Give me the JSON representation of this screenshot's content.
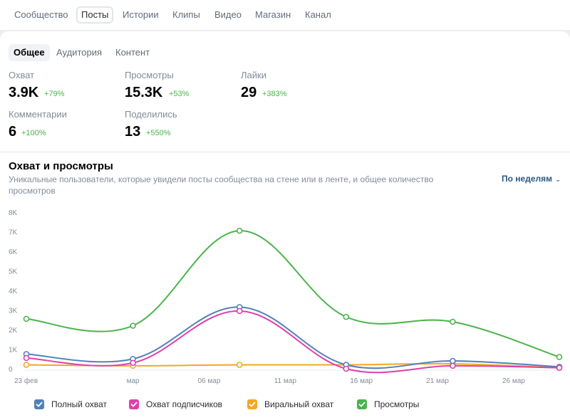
{
  "nav": {
    "tabs": [
      "Сообщество",
      "Посты",
      "Истории",
      "Клипы",
      "Видео",
      "Магазин",
      "Канал"
    ],
    "active": "Посты"
  },
  "subtabs": {
    "items": [
      "Общее",
      "Аудитория",
      "Контент"
    ],
    "active": "Общее"
  },
  "metrics": [
    {
      "label": "Охват",
      "value": "3.9K",
      "delta": "+79%"
    },
    {
      "label": "Просмотры",
      "value": "15.3K",
      "delta": "+53%"
    },
    {
      "label": "Лайки",
      "value": "29",
      "delta": "+383%"
    },
    {
      "label": "Комментарии",
      "value": "6",
      "delta": "+100%"
    },
    {
      "label": "Поделились",
      "value": "13",
      "delta": "+550%"
    }
  ],
  "chart_header": {
    "title": "Охват и просмотры",
    "subtitle": "Уникальные пользователи, которые увидели посты сообщества на стене или в ленте, и общее количество просмотров",
    "period": "По неделям"
  },
  "colors": {
    "positive": "#4bb34b",
    "link": "#2a5885"
  },
  "chart_data": {
    "type": "line",
    "title": "Охват и просмотры",
    "x": [
      "2024-02-23",
      "2024-03-01",
      "2024-03-08",
      "2024-03-15",
      "2024-03-22",
      "2024-03-29"
    ],
    "x_tick_labels": [
      "23 фев",
      "мар",
      "06 мар",
      "11 мар",
      "16 мар",
      "21 мар",
      "26 мар"
    ],
    "x_tick_dates": [
      "2024-02-23",
      "2024-03-01",
      "2024-03-06",
      "2024-03-11",
      "2024-03-16",
      "2024-03-21",
      "2024-03-26"
    ],
    "ylim": [
      0,
      8000
    ],
    "y_ticks": [
      0,
      1000,
      2000,
      3000,
      4000,
      5000,
      6000,
      7000,
      8000
    ],
    "y_tick_labels": [
      "0",
      "1K",
      "2K",
      "3K",
      "4K",
      "5K",
      "6K",
      "7K",
      "8K"
    ],
    "series": [
      {
        "name": "Полный охват",
        "color": "#5181b8",
        "values": [
          750,
          500,
          3150,
          200,
          400,
          100
        ]
      },
      {
        "name": "Охват подписчиков",
        "color": "#e03fab",
        "values": [
          550,
          300,
          2950,
          0,
          150,
          50
        ]
      },
      {
        "name": "Виральный охват",
        "color": "#f5a623",
        "values": [
          200,
          150,
          200,
          200,
          250,
          50
        ]
      },
      {
        "name": "Просмотры",
        "color": "#4bb34b",
        "values": [
          2550,
          2200,
          7050,
          2650,
          2400,
          600
        ]
      }
    ],
    "grid": false,
    "legend_position": "bottom"
  }
}
